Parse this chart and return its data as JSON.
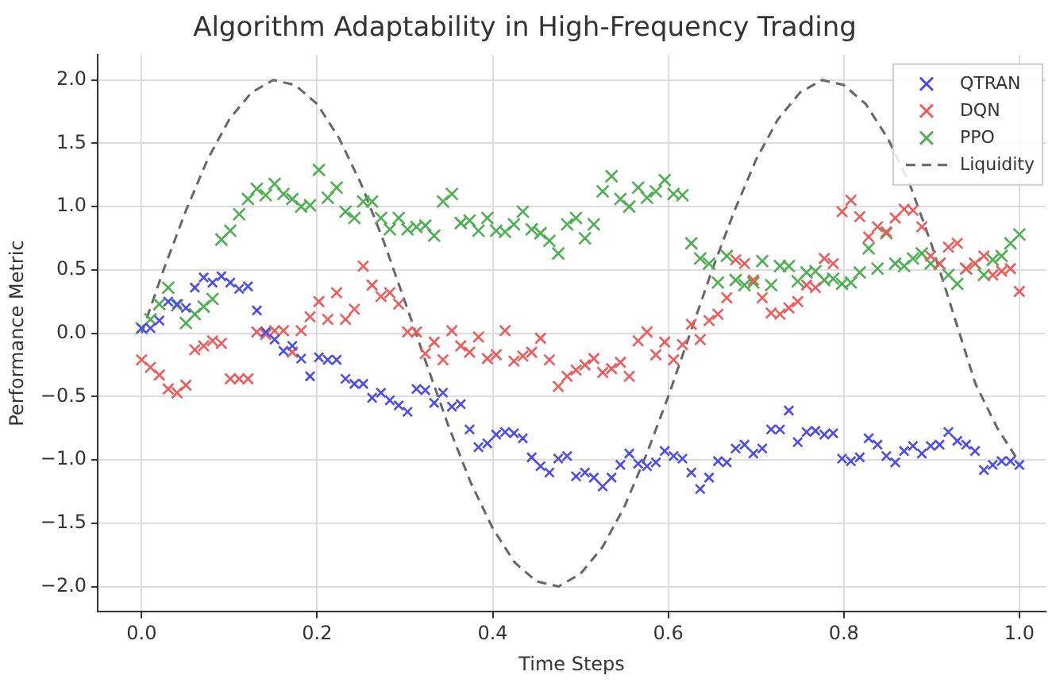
{
  "chart_data": {
    "type": "scatter",
    "title": "Algorithm Adaptability in High-Frequency Trading",
    "xlabel": "Time Steps",
    "ylabel": "Performance Metric",
    "x": [
      0,
      0.0101,
      0.0202,
      0.0303,
      0.0404,
      0.0505,
      0.0606,
      0.0707,
      0.0808,
      0.0909,
      0.101,
      0.1111,
      0.1212,
      0.1313,
      0.1414,
      0.1515,
      0.1616,
      0.1717,
      0.1818,
      0.1919,
      0.202,
      0.2121,
      0.2222,
      0.2323,
      0.2424,
      0.2525,
      0.2626,
      0.2727,
      0.2828,
      0.2929,
      0.303,
      0.3131,
      0.3232,
      0.3333,
      0.3434,
      0.3535,
      0.3636,
      0.3737,
      0.3838,
      0.3939,
      0.404,
      0.4141,
      0.4242,
      0.4343,
      0.4444,
      0.4545,
      0.4646,
      0.4747,
      0.4848,
      0.4949,
      0.5051,
      0.5152,
      0.5253,
      0.5354,
      0.5455,
      0.5556,
      0.5657,
      0.5758,
      0.5859,
      0.596,
      0.6061,
      0.6162,
      0.6263,
      0.6364,
      0.6465,
      0.6566,
      0.6667,
      0.6768,
      0.6869,
      0.697,
      0.7071,
      0.7172,
      0.7273,
      0.7374,
      0.7475,
      0.7576,
      0.7677,
      0.7778,
      0.7879,
      0.798,
      0.8081,
      0.8182,
      0.8283,
      0.8384,
      0.8485,
      0.8586,
      0.8687,
      0.8788,
      0.8889,
      0.899,
      0.9091,
      0.9192,
      0.9293,
      0.9394,
      0.9495,
      0.9596,
      0.9697,
      0.9798,
      0.9899,
      1
    ],
    "series": [
      {
        "name": "QTRAN",
        "color": "#4b4bf0",
        "values": [
          0.04,
          0.04,
          0.1,
          0.25,
          0.23,
          0.2,
          0.36,
          0.44,
          0.4,
          0.45,
          0.4,
          0.35,
          0.37,
          0.18,
          0.01,
          -0.05,
          -0.14,
          -0.1,
          -0.2,
          -0.34,
          -0.19,
          -0.21,
          -0.21,
          -0.36,
          -0.4,
          -0.4,
          -0.51,
          -0.47,
          -0.53,
          -0.57,
          -0.62,
          -0.44,
          -0.45,
          -0.55,
          -0.47,
          -0.58,
          -0.56,
          -0.76,
          -0.9,
          -0.87,
          -0.8,
          -0.78,
          -0.79,
          -0.83,
          -0.98,
          -1.05,
          -1.1,
          -0.99,
          -0.97,
          -1.13,
          -1.1,
          -1.14,
          -1.21,
          -1.14,
          -1.04,
          -0.95,
          -1.03,
          -1.05,
          -1.02,
          -0.93,
          -0.97,
          -0.99,
          -1.1,
          -1.23,
          -1.14,
          -1.01,
          -1.02,
          -0.91,
          -0.88,
          -0.95,
          -0.91,
          -0.76,
          -0.76,
          -0.61,
          -0.86,
          -0.78,
          -0.77,
          -0.8,
          -0.79,
          -0.99,
          -1.01,
          -0.98,
          -0.83,
          -0.88,
          -0.97,
          -1.02,
          -0.93,
          -0.89,
          -0.95,
          -0.89,
          -0.88,
          -0.78,
          -0.85,
          -0.88,
          -0.93,
          -1.08,
          -1.04,
          -1.01,
          -1.01,
          -1.04
        ]
      },
      {
        "name": "DQN",
        "color": "#f25a5a",
        "values": [
          -0.21,
          -0.27,
          -0.33,
          -0.44,
          -0.47,
          -0.41,
          -0.13,
          -0.1,
          -0.06,
          -0.08,
          -0.36,
          -0.36,
          -0.36,
          0.01,
          -0.01,
          0.02,
          0.02,
          -0.15,
          0.02,
          0.13,
          0.25,
          0.11,
          0.32,
          0.11,
          0.19,
          0.53,
          0.38,
          0.29,
          0.32,
          0.23,
          0.01,
          0.01,
          -0.16,
          -0.07,
          -0.21,
          0.02,
          -0.1,
          -0.15,
          -0.03,
          -0.2,
          -0.17,
          0.02,
          -0.22,
          -0.18,
          -0.15,
          -0.04,
          -0.21,
          -0.42,
          -0.34,
          -0.29,
          -0.25,
          -0.2,
          -0.31,
          -0.28,
          -0.23,
          -0.34,
          -0.06,
          0.01,
          -0.17,
          -0.07,
          -0.21,
          -0.09,
          0.07,
          -0.05,
          0.1,
          0.15,
          0.28,
          0.58,
          0.55,
          0.42,
          0.28,
          0.16,
          0.15,
          0.2,
          0.25,
          0.38,
          0.36,
          0.59,
          0.55,
          0.96,
          1.05,
          0.92,
          0.76,
          0.84,
          0.8,
          0.91,
          0.98,
          0.97,
          0.84,
          0.61,
          0.55,
          0.68,
          0.71,
          0.51,
          0.55,
          0.61,
          0.46,
          0.49,
          0.51,
          0.33
        ]
      },
      {
        "name": "PPO",
        "color": "#4caf50",
        "values": [
          0.04,
          0.11,
          0.23,
          0.36,
          0.22,
          0.08,
          0.15,
          0.21,
          0.27,
          0.74,
          0.81,
          0.94,
          1.06,
          1.14,
          1.09,
          1.18,
          1.1,
          1.06,
          1.0,
          1.01,
          1.29,
          1.07,
          1.15,
          0.96,
          0.91,
          1.04,
          1.04,
          0.91,
          0.82,
          0.91,
          0.82,
          0.84,
          0.85,
          0.77,
          1.04,
          1.1,
          0.87,
          0.89,
          0.81,
          0.91,
          0.81,
          0.8,
          0.86,
          0.96,
          0.82,
          0.79,
          0.73,
          0.63,
          0.86,
          0.91,
          0.75,
          0.86,
          1.12,
          1.24,
          1.06,
          1.0,
          1.15,
          1.07,
          1.12,
          1.21,
          1.1,
          1.09,
          0.71,
          0.59,
          0.55,
          0.4,
          0.61,
          0.42,
          0.38,
          0.4,
          0.57,
          0.38,
          0.53,
          0.53,
          0.41,
          0.48,
          0.49,
          0.42,
          0.43,
          0.39,
          0.4,
          0.48,
          0.67,
          0.51,
          0.79,
          0.55,
          0.53,
          0.59,
          0.63,
          0.55,
          0.55,
          0.46,
          0.39,
          0.51,
          0.55,
          0.46,
          0.58,
          0.61,
          0.71,
          0.78
        ]
      },
      {
        "name": "Liquidity",
        "type": "line",
        "color": "#666666",
        "line_style": "dashed",
        "marker": "none",
        "x": [
          0,
          0.025,
          0.05,
          0.075,
          0.1,
          0.125,
          0.15,
          0.175,
          0.2,
          0.225,
          0.25,
          0.275,
          0.3,
          0.325,
          0.35,
          0.375,
          0.4,
          0.425,
          0.45,
          0.475,
          0.5,
          0.525,
          0.55,
          0.575,
          0.6,
          0.625,
          0.65,
          0.675,
          0.7,
          0.725,
          0.75,
          0.775,
          0.8,
          0.825,
          0.85,
          0.875,
          0.9,
          0.925,
          0.95,
          0.975,
          1
        ],
        "values": [
          0,
          0.5,
          0.96,
          1.37,
          1.69,
          1.9,
          2.0,
          1.96,
          1.81,
          1.54,
          1.18,
          0.74,
          0.25,
          -0.25,
          -0.74,
          -1.18,
          -1.54,
          -1.81,
          -1.96,
          -2.0,
          -1.9,
          -1.69,
          -1.37,
          -0.96,
          -0.5,
          0,
          0.5,
          0.96,
          1.37,
          1.69,
          1.9,
          2.0,
          1.96,
          1.81,
          1.54,
          1.18,
          0.7,
          0.15,
          -0.4,
          -0.75,
          -1.02
        ]
      }
    ],
    "marker": "cross",
    "grid": true,
    "legend": "top right",
    "xlim": [
      -0.05,
      1.03
    ],
    "xticks": [
      {
        "value": 0,
        "label": "0.0"
      },
      {
        "value": 0.2,
        "label": "0.2"
      },
      {
        "value": 0.4,
        "label": "0.4"
      },
      {
        "value": 0.6,
        "label": "0.6"
      },
      {
        "value": 0.8,
        "label": "0.8"
      },
      {
        "value": 1,
        "label": "1.0"
      }
    ],
    "ylim": [
      -2.2,
      2.2
    ],
    "yticks": [
      {
        "value": -2,
        "label": "−2.0"
      },
      {
        "value": -1.5,
        "label": "−1.5"
      },
      {
        "value": -1,
        "label": "−1.0"
      },
      {
        "value": -0.5,
        "label": "−0.5"
      },
      {
        "value": 0,
        "label": "0.0"
      },
      {
        "value": 0.5,
        "label": "0.5"
      },
      {
        "value": 1,
        "label": "1.0"
      },
      {
        "value": 1.5,
        "label": "1.5"
      },
      {
        "value": 2,
        "label": "2.0"
      }
    ]
  }
}
